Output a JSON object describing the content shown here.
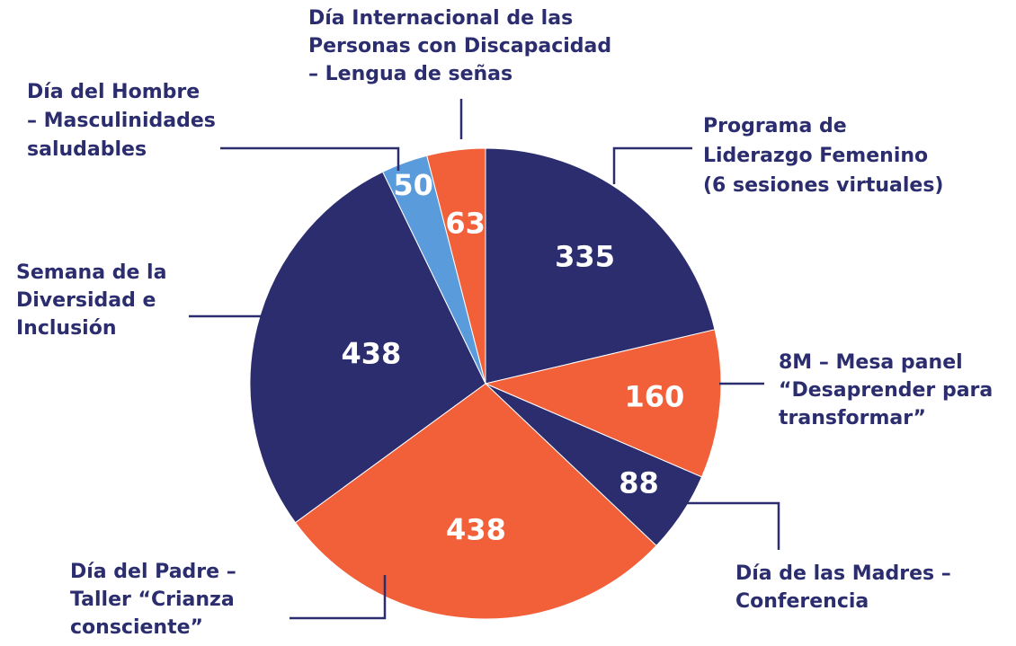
{
  "chart_data": {
    "type": "pie",
    "categories": [
      "Programa de\nLiderazgo Femenino\n(6 sesiones virtuales)",
      "8M – Mesa panel\n“Desaprender para\ntransformar”",
      "Día de las Madres –\nConferencia",
      "Día del Padre –\nTaller “Crianza\nconsciente”",
      "Semana de la\nDiversidad e\nInclusión",
      "Día del Hombre\n– Masculinidades\nsaludables",
      "Día Internacional de las\nPersonas con Discapacidad\n– Lengua de señas"
    ],
    "values": [
      335,
      160,
      88,
      438,
      438,
      50,
      63
    ],
    "colors": [
      "#2b2d6e",
      "#f2603a",
      "#2b2d6e",
      "#f2603a",
      "#2b2d6e",
      "#5a9bdc",
      "#f2603a"
    ]
  }
}
